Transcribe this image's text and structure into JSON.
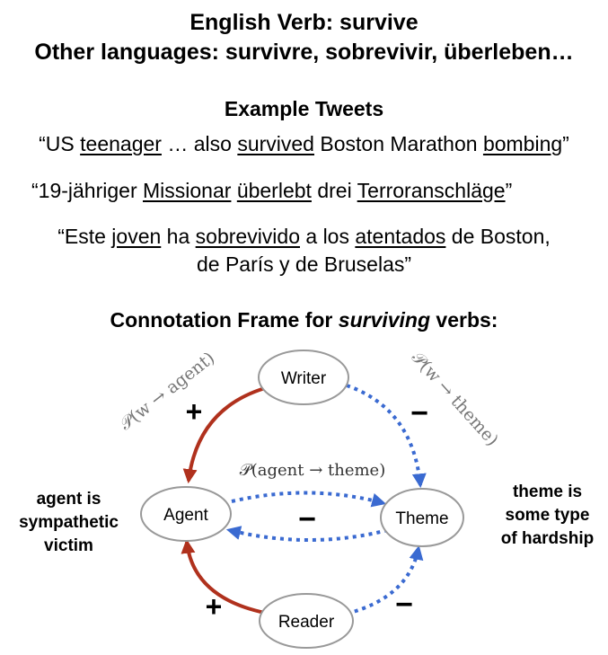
{
  "header": {
    "line1": "English Verb: survive",
    "line2": "Other languages: survivre, sobrevivir, überleben…"
  },
  "examples": {
    "title": "Example Tweets",
    "tweet1": [
      {
        "t": "“US ",
        "u": false
      },
      {
        "t": "teenager",
        "u": true
      },
      {
        "t": " … also ",
        "u": false
      },
      {
        "t": "survived",
        "u": true
      },
      {
        "t": " Boston Marathon ",
        "u": false
      },
      {
        "t": "bombing",
        "u": true
      },
      {
        "t": "”",
        "u": false
      }
    ],
    "tweet2": [
      {
        "t": "“19-jähriger ",
        "u": false
      },
      {
        "t": "Missionar",
        "u": true
      },
      {
        "t": " ",
        "u": false
      },
      {
        "t": "überlebt",
        "u": true
      },
      {
        "t": " drei ",
        "u": false
      },
      {
        "t": "Terroranschläge",
        "u": true
      },
      {
        "t": "”",
        "u": false
      }
    ],
    "tweet3_line1": [
      {
        "t": "“Este ",
        "u": false
      },
      {
        "t": "joven",
        "u": true
      },
      {
        "t": " ha ",
        "u": false
      },
      {
        "t": "sobrevivido",
        "u": true
      },
      {
        "t": " a los ",
        "u": false
      },
      {
        "t": "atentados",
        "u": true
      },
      {
        "t": " de Boston,",
        "u": false
      }
    ],
    "tweet3_line2": "de París y de Bruselas”"
  },
  "frame": {
    "title_prefix": "Connotation Frame for ",
    "title_italic": "surviving",
    "title_suffix": " verbs:",
    "nodes": {
      "writer": "Writer",
      "agent": "Agent",
      "theme": "Theme",
      "reader": "Reader"
    },
    "labels": {
      "w_agent": "𝒫(w → agent)",
      "w_theme": "𝒫(w → theme)",
      "agent_theme": "𝒫(agent → theme)"
    },
    "signs": {
      "writer_agent": "+",
      "writer_theme": "−",
      "agent_theme": "−",
      "reader_agent": "+",
      "reader_theme": "−"
    },
    "agent_note": [
      "agent is",
      "sympathetic",
      "victim"
    ],
    "theme_note": [
      "theme is",
      "some type",
      "of hardship"
    ]
  },
  "colors": {
    "positive": "#b0311d",
    "negative": "#3a6ad1",
    "node_border": "#999999"
  }
}
